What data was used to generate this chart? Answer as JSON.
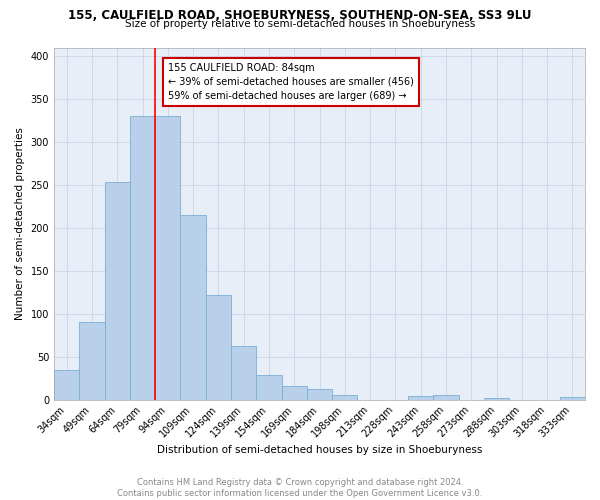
{
  "title": "155, CAULFIELD ROAD, SHOEBURYNESS, SOUTHEND-ON-SEA, SS3 9LU",
  "subtitle": "Size of property relative to semi-detached houses in Shoeburyness",
  "xlabel": "Distribution of semi-detached houses by size in Shoeburyness",
  "ylabel": "Number of semi-detached properties",
  "categories": [
    "34sqm",
    "49sqm",
    "64sqm",
    "79sqm",
    "94sqm",
    "109sqm",
    "124sqm",
    "139sqm",
    "154sqm",
    "169sqm",
    "184sqm",
    "198sqm",
    "213sqm",
    "228sqm",
    "243sqm",
    "258sqm",
    "273sqm",
    "288sqm",
    "303sqm",
    "318sqm",
    "333sqm"
  ],
  "values": [
    35,
    91,
    253,
    330,
    330,
    215,
    122,
    62,
    29,
    16,
    13,
    6,
    0,
    0,
    4,
    5,
    0,
    2,
    0,
    0,
    3
  ],
  "bar_color": "#b8d0ea",
  "bar_edge_color": "#7aafd4",
  "annotation_text": "155 CAULFIELD ROAD: 84sqm\n← 39% of semi-detached houses are smaller (456)\n59% of semi-detached houses are larger (689) →",
  "annotation_box_color": "#ffffff",
  "annotation_box_edge": "#cc0000",
  "grid_color": "#d0d8e8",
  "background_color": "#ffffff",
  "plot_bg_color": "#e8eef8",
  "footer": "Contains HM Land Registry data © Crown copyright and database right 2024.\nContains public sector information licensed under the Open Government Licence v3.0.",
  "ylim": [
    0,
    410
  ],
  "yticks": [
    0,
    50,
    100,
    150,
    200,
    250,
    300,
    350,
    400
  ],
  "red_line_x": 3.5,
  "title_fontsize": 8.5,
  "subtitle_fontsize": 7.5,
  "ylabel_fontsize": 7.5,
  "xlabel_fontsize": 7.5,
  "tick_fontsize": 7,
  "annotation_fontsize": 7,
  "footer_fontsize": 6
}
